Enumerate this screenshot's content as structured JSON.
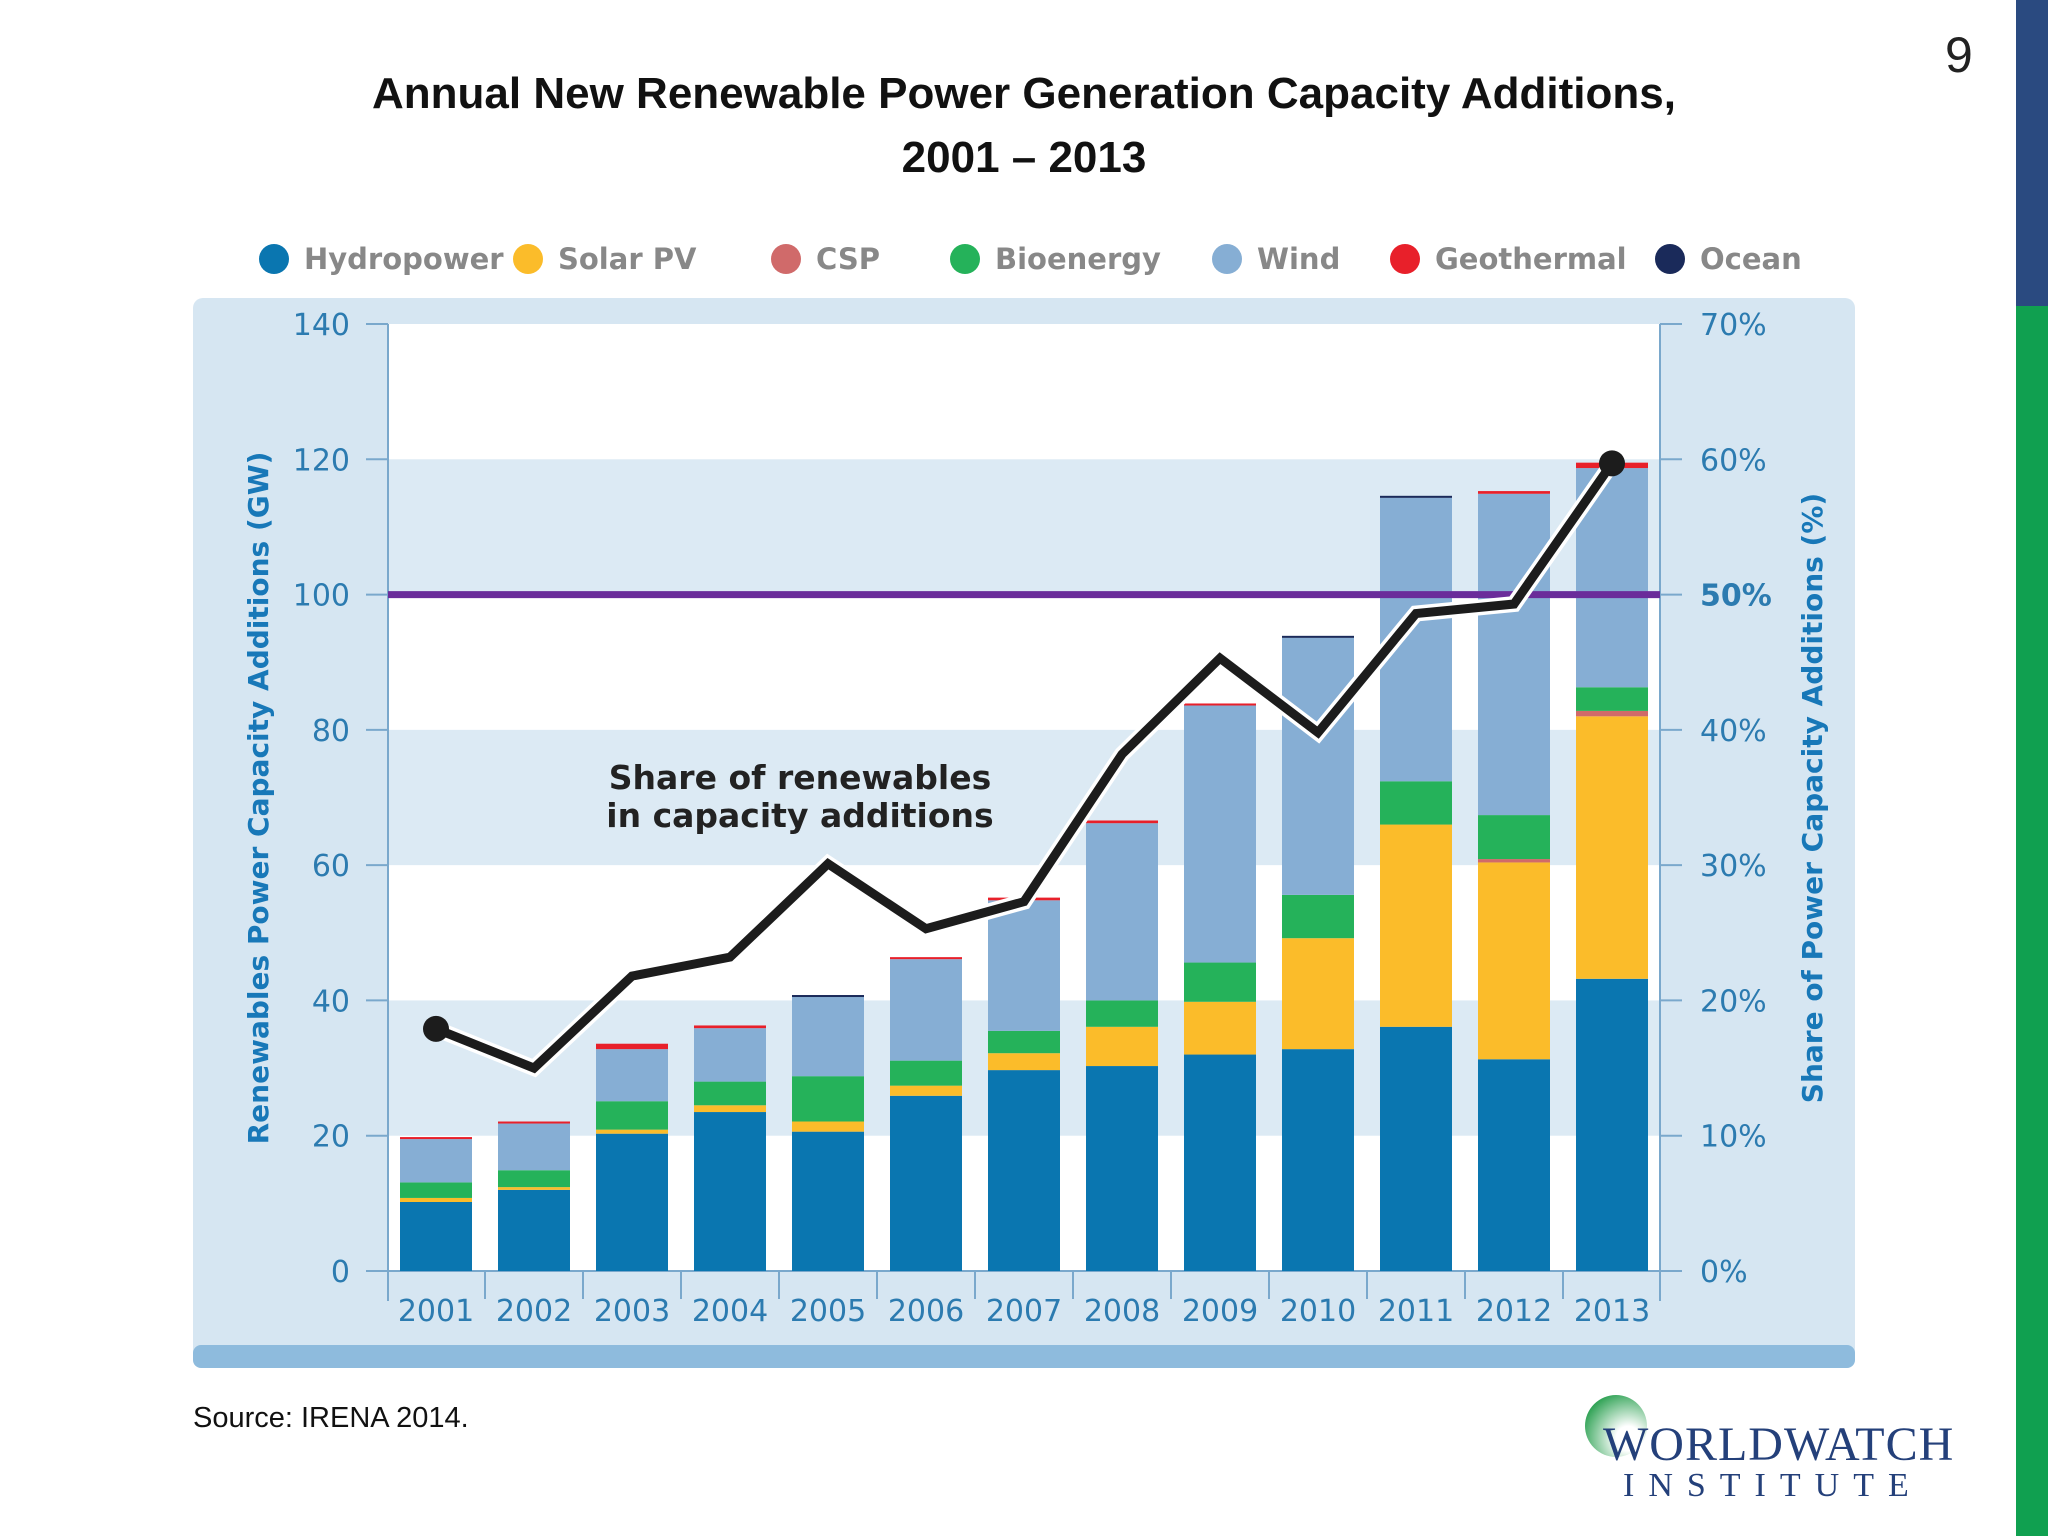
{
  "page_number": "9",
  "title_line1": "Annual New Renewable Power Generation Capacity Additions,",
  "title_line2": "2001 – 2013",
  "source": "Source: IRENA 2014.",
  "logo": {
    "line1": "WORLDWATCH",
    "line2": "INSTITUTE"
  },
  "colors": {
    "navy_bar": "#2a4a80",
    "green_bar": "#10a050",
    "reference_line": "#6a2c9a",
    "share_line": "#1c1c1c"
  },
  "chart_data": {
    "type": "bar",
    "stacked": true,
    "title": "",
    "ylabel": "Renewables Power Capacity Additions (GW)",
    "y2label": "Share of Power Capacity Additions (%)",
    "ylim": [
      0,
      140
    ],
    "y2lim": [
      0,
      70
    ],
    "yticks": [
      "0",
      "20",
      "40",
      "60",
      "80",
      "100",
      "120",
      "140"
    ],
    "y2ticks": [
      "0%",
      "10%",
      "20%",
      "30%",
      "40%",
      "50%",
      "60%",
      "70%"
    ],
    "legend_position": "top",
    "annotation": [
      "Share of renewables",
      "in capacity additions"
    ],
    "reference_line": {
      "y2": 50,
      "label": "50%"
    },
    "categories": [
      "2001",
      "2002",
      "2003",
      "2004",
      "2005",
      "2006",
      "2007",
      "2008",
      "2009",
      "2010",
      "2011",
      "2012",
      "2013"
    ],
    "series": [
      {
        "name": "Hydropower",
        "color": "#0a76b0",
        "values": [
          10.2,
          12.0,
          20.3,
          23.5,
          20.6,
          25.9,
          29.7,
          30.3,
          32.0,
          32.8,
          36.1,
          31.3,
          43.2
        ]
      },
      {
        "name": "Solar PV",
        "color": "#fbbc2a",
        "values": [
          0.6,
          0.4,
          0.6,
          1.0,
          1.5,
          1.5,
          2.5,
          5.8,
          7.8,
          16.4,
          29.9,
          29.1,
          38.8
        ]
      },
      {
        "name": "CSP",
        "color": "#d06a6a",
        "values": [
          0,
          0,
          0,
          0,
          0,
          0,
          0,
          0,
          0,
          0,
          0,
          0.5,
          0.8
        ]
      },
      {
        "name": "Bioenergy",
        "color": "#25b25a",
        "values": [
          2.3,
          2.5,
          4.2,
          3.5,
          6.7,
          3.7,
          3.3,
          3.9,
          5.8,
          6.4,
          6.4,
          6.5,
          3.5
        ]
      },
      {
        "name": "Wind",
        "color": "#86aed4",
        "values": [
          6.4,
          6.9,
          7.7,
          7.9,
          11.7,
          15.0,
          19.3,
          26.2,
          38.0,
          38.0,
          41.9,
          47.5,
          32.4
        ]
      },
      {
        "name": "Geothermal",
        "color": "#e8202a",
        "values": [
          0.3,
          0.3,
          0.8,
          0.4,
          0,
          0.3,
          0.4,
          0.4,
          0.3,
          0,
          0,
          0.4,
          0.8
        ]
      },
      {
        "name": "Ocean",
        "color": "#1a2a5a",
        "values": [
          0,
          0,
          0,
          0,
          0.3,
          0,
          0,
          0,
          0,
          0.3,
          0.3,
          0,
          0
        ]
      }
    ],
    "line_series": {
      "axis": "y2",
      "color": "#1c1c1c",
      "values": [
        17.9,
        15.0,
        21.8,
        23.2,
        30.1,
        25.3,
        27.3,
        38.2,
        45.3,
        39.8,
        48.6,
        49.3,
        59.7
      ]
    }
  }
}
